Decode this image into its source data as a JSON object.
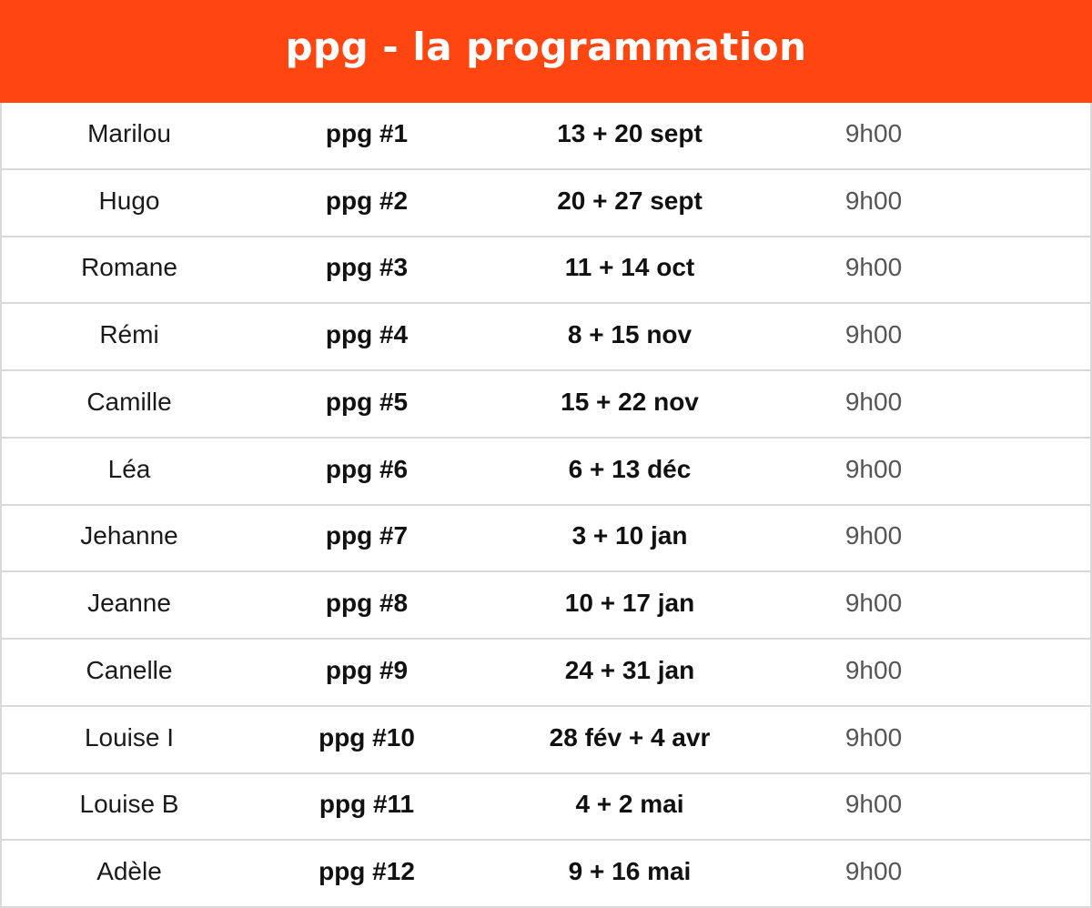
{
  "header": {
    "title": "ppg - la programmation"
  },
  "colors": {
    "header_bg": "#ff4611",
    "grid_line": "#d9d9d9"
  },
  "rows": [
    {
      "name": "Marilou",
      "code": "ppg #1",
      "dates": "13 + 20 sept",
      "time": "9h00"
    },
    {
      "name": "Hugo",
      "code": "ppg #2",
      "dates": "20 + 27 sept",
      "time": "9h00"
    },
    {
      "name": "Romane",
      "code": "ppg #3",
      "dates": "11 + 14 oct",
      "time": "9h00"
    },
    {
      "name": "Rémi",
      "code": "ppg #4",
      "dates": "8 + 15 nov",
      "time": "9h00"
    },
    {
      "name": "Camille",
      "code": "ppg #5",
      "dates": "15 + 22 nov",
      "time": "9h00"
    },
    {
      "name": "Léa",
      "code": "ppg #6",
      "dates": "6 + 13 déc",
      "time": "9h00"
    },
    {
      "name": "Jehanne",
      "code": "ppg #7",
      "dates": "3 + 10 jan",
      "time": "9h00"
    },
    {
      "name": "Jeanne",
      "code": "ppg #8",
      "dates": "10 + 17 jan",
      "time": "9h00"
    },
    {
      "name": "Canelle",
      "code": "ppg #9",
      "dates": "24 + 31 jan",
      "time": "9h00"
    },
    {
      "name": "Louise I",
      "code": "ppg #10",
      "dates": "28 fév + 4 avr",
      "time": "9h00"
    },
    {
      "name": "Louise B",
      "code": "ppg #11",
      "dates": "4 + 2 mai",
      "time": "9h00"
    },
    {
      "name": "Adèle",
      "code": "ppg #12",
      "dates": "9 + 16 mai",
      "time": "9h00"
    }
  ]
}
